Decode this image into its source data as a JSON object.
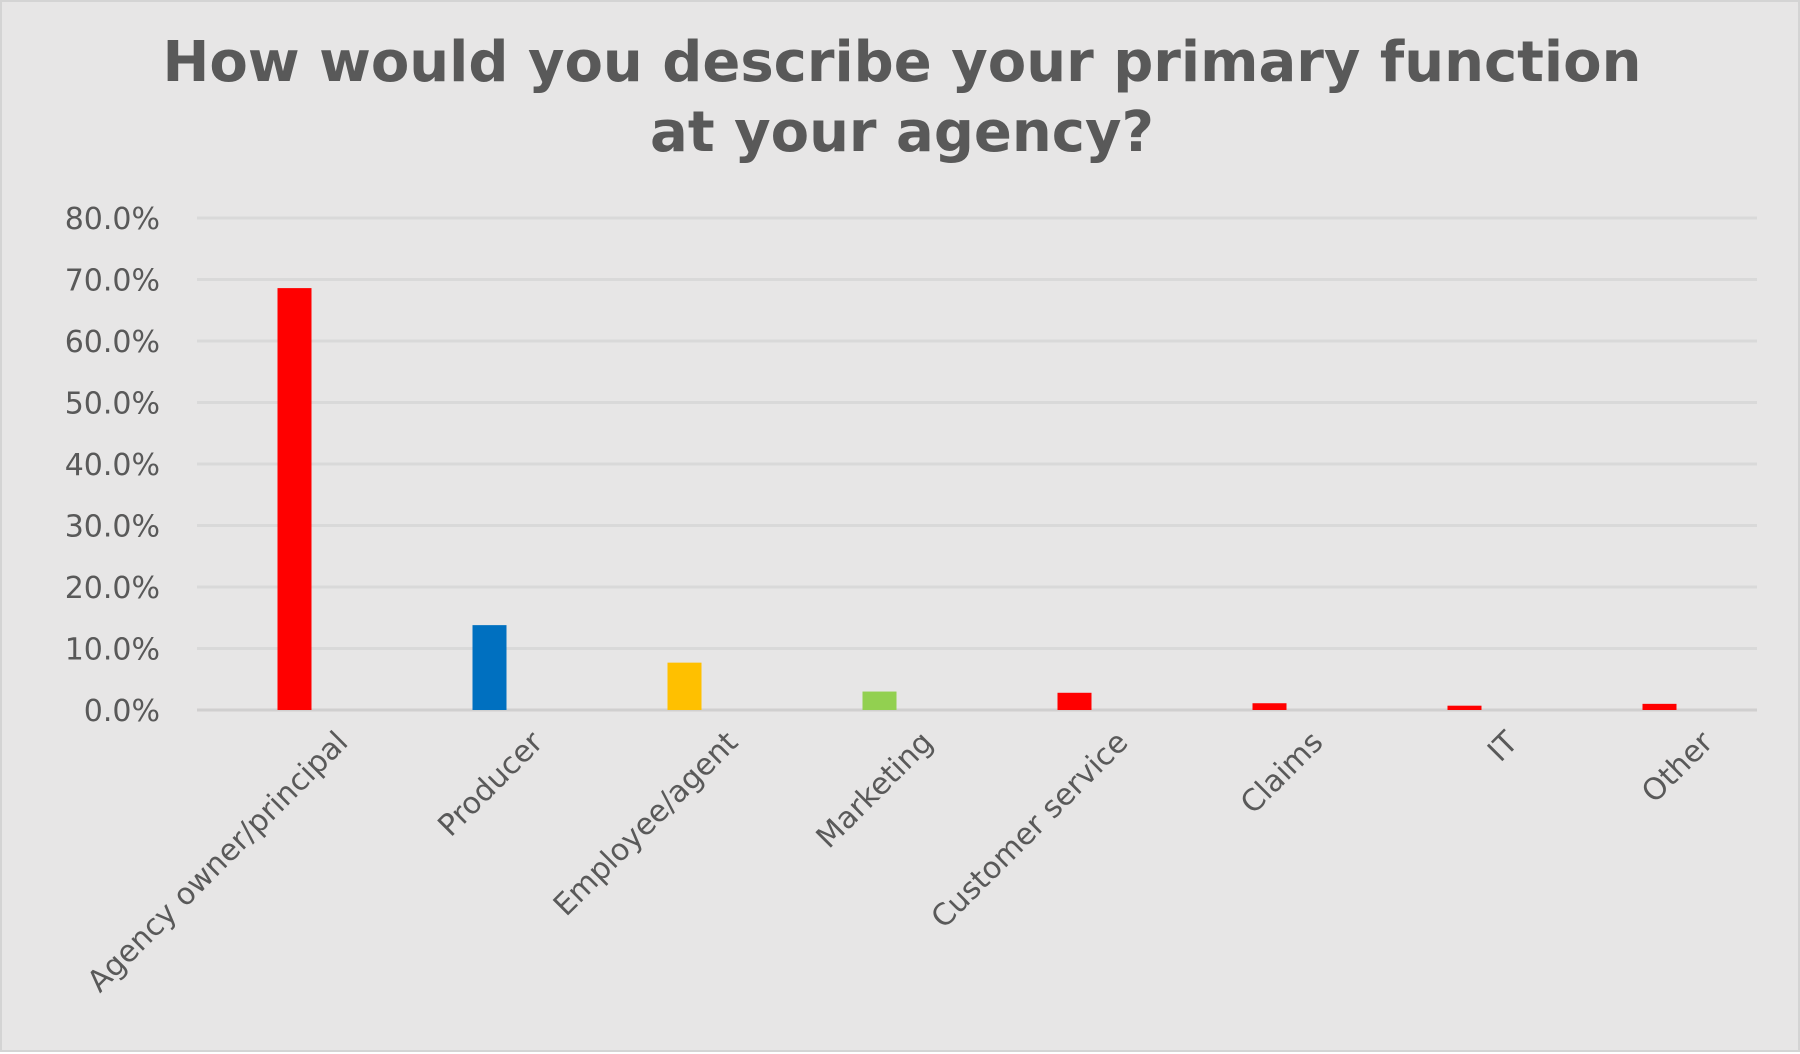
{
  "chart_data": {
    "type": "bar",
    "title": "How would you describe your primary function at your agency?",
    "xlabel": "",
    "ylabel": "",
    "categories": [
      "Agency owner/principal",
      "Producer",
      "Employee/agent",
      "Marketing",
      "Customer service",
      "Claims",
      "IT",
      "Other"
    ],
    "values": [
      68.6,
      13.8,
      7.7,
      3.0,
      2.8,
      1.1,
      0.7,
      1.0
    ],
    "colors": [
      "#ff0000",
      "#0070c0",
      "#ffc000",
      "#92d050",
      "#ff0000",
      "#ff0000",
      "#ff0000",
      "#ff0000"
    ],
    "ylim": [
      0,
      80
    ],
    "yticks": [
      0,
      10,
      20,
      30,
      40,
      50,
      60,
      70,
      80
    ],
    "ytick_labels": [
      "0.0%",
      "10.0%",
      "20.0%",
      "30.0%",
      "40.0%",
      "50.0%",
      "60.0%",
      "70.0%",
      "80.0%"
    ],
    "grid": true,
    "legend": "none"
  }
}
